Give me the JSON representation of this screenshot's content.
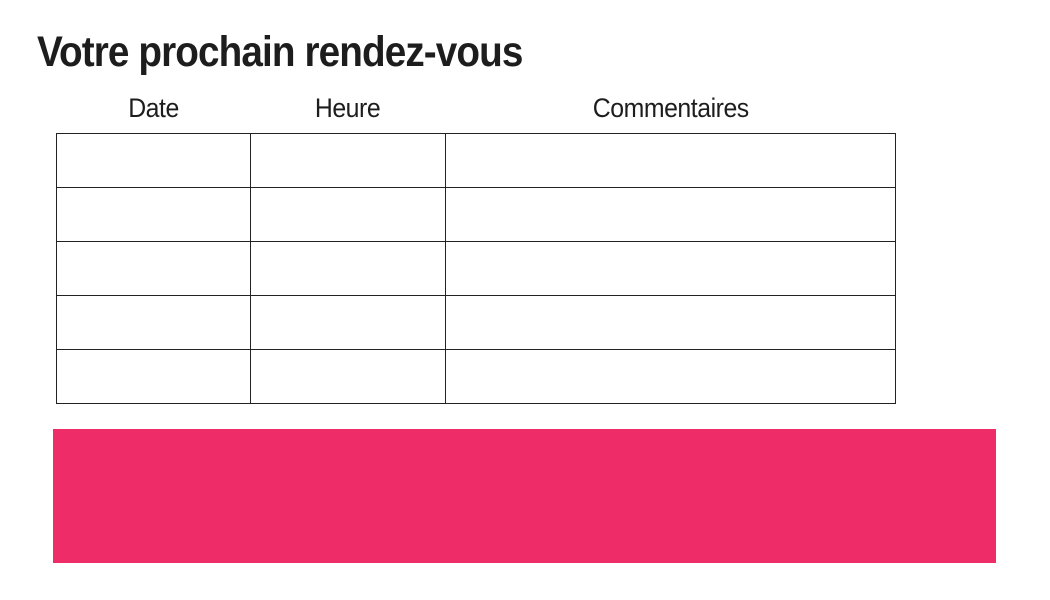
{
  "page": {
    "title": "Votre prochain rendez-vous",
    "background": "#ffffff",
    "text_color": "#1d1d1d"
  },
  "appointments_table": {
    "headers": [
      "Date",
      "Heure",
      "Commentaires"
    ],
    "rows": [
      [
        "",
        "",
        ""
      ],
      [
        "",
        "",
        ""
      ],
      [
        "",
        "",
        ""
      ],
      [
        "",
        "",
        ""
      ],
      [
        "",
        "",
        ""
      ]
    ],
    "border_color": "#232323"
  },
  "banner": {
    "color": "#ED2C68"
  }
}
